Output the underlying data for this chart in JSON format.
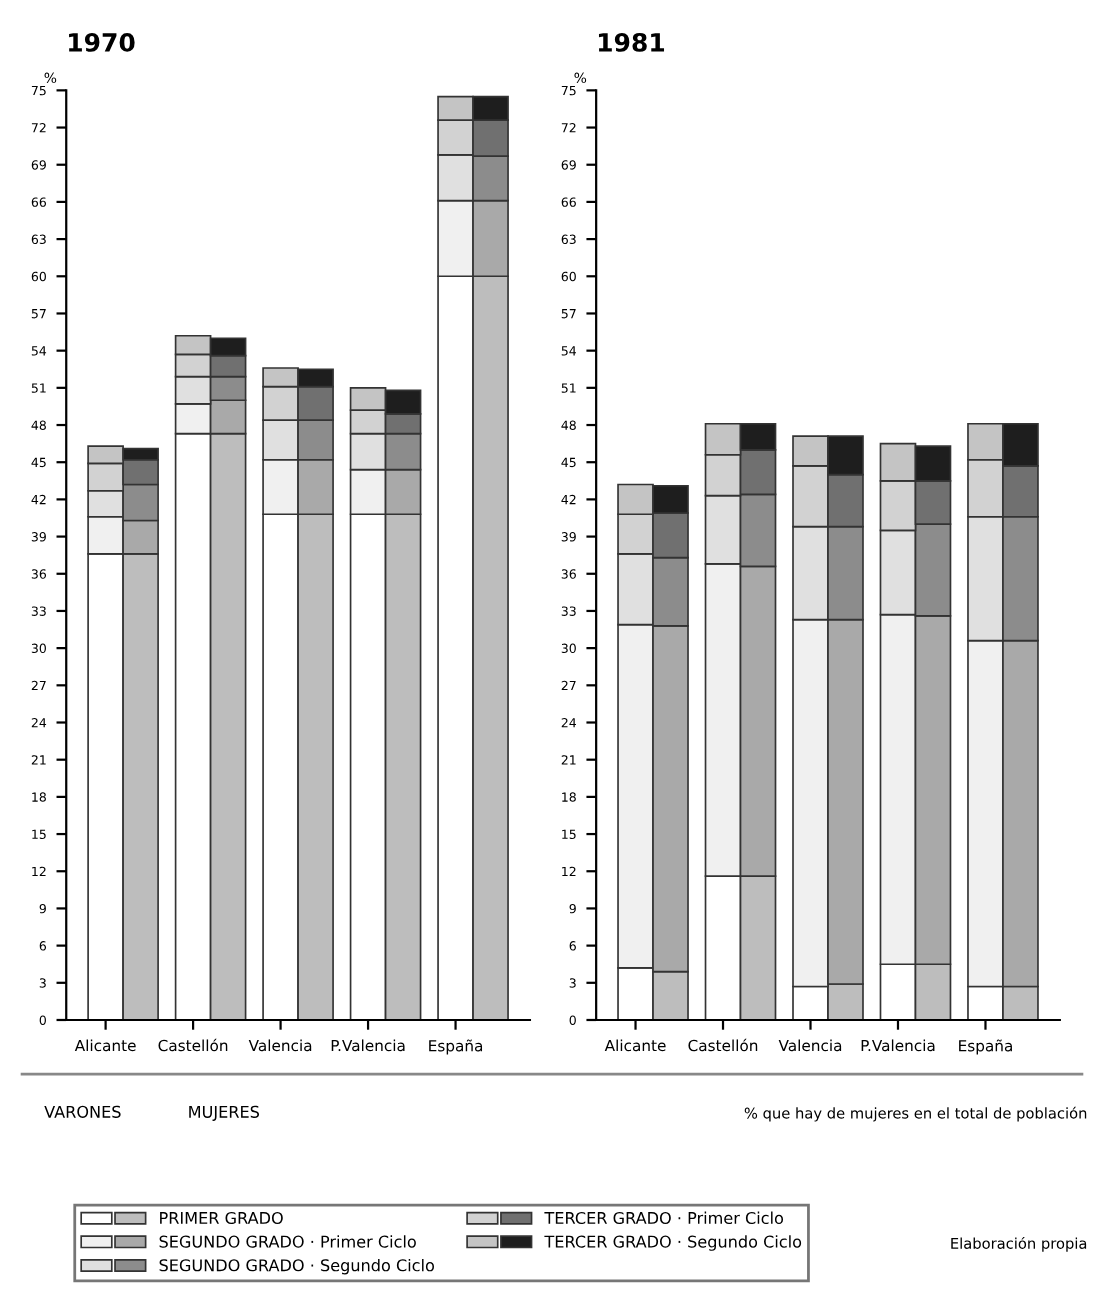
{
  "chart_data": [
    {
      "type": "bar",
      "stacked": true,
      "title": "1970",
      "ylabel": "%",
      "categories": [
        "Alicante",
        null,
        "Castellón",
        null,
        "Valencia",
        null,
        "P.Valencia",
        null,
        "España",
        null
      ],
      "ylim": [
        0,
        75
      ],
      "yticks": [
        0,
        3,
        6,
        9,
        12,
        15,
        18,
        21,
        24,
        27,
        30,
        33,
        36,
        39,
        42,
        45,
        48,
        51,
        54,
        57,
        60,
        63,
        66,
        69,
        72,
        75
      ],
      "legend": "bottom",
      "series": [
        {
          "name": "PRIMER GRADO",
          "colors": [
            "#ffffff",
            "#bdbdbd",
            "#ffffff",
            "#bdbdbd",
            "#ffffff",
            "#bdbdbd",
            "#ffffff",
            "#bdbdbd",
            "#ffffff",
            "#bdbdbd"
          ],
          "values": [
            37.6,
            37.6,
            47.3,
            47.3,
            40.8,
            40.8,
            40.8,
            40.8,
            60.0,
            60.0
          ]
        },
        {
          "name": "SEGUNDO GRADO · Primer Ciclo",
          "colors": [
            "#f0f0f0",
            "#a9a9a9",
            "#f0f0f0",
            "#a9a9a9",
            "#f0f0f0",
            "#a9a9a9",
            "#f0f0f0",
            "#a9a9a9",
            "#f0f0f0",
            "#a9a9a9"
          ],
          "values": [
            3.0,
            2.7,
            2.4,
            2.7,
            4.4,
            4.4,
            3.6,
            3.6,
            6.1,
            6.1
          ]
        },
        {
          "name": "SEGUNDO GRADO · Segundo Ciclo",
          "colors": [
            "#e0e0e0",
            "#8c8c8c",
            "#e0e0e0",
            "#8c8c8c",
            "#e0e0e0",
            "#8c8c8c",
            "#e0e0e0",
            "#8c8c8c",
            "#e0e0e0",
            "#8c8c8c"
          ],
          "values": [
            2.1,
            2.9,
            2.2,
            1.9,
            3.2,
            3.2,
            2.9,
            2.9,
            3.7,
            3.6
          ]
        },
        {
          "name": "TERCER GRADO · Primer Ciclo",
          "colors": [
            "#d2d2d2",
            "#707070",
            "#d2d2d2",
            "#707070",
            "#d2d2d2",
            "#707070",
            "#d2d2d2",
            "#707070",
            "#d2d2d2",
            "#707070"
          ],
          "values": [
            2.2,
            2.0,
            1.8,
            1.7,
            2.7,
            2.7,
            1.9,
            1.6,
            2.8,
            2.9
          ]
        },
        {
          "name": "TERCER GRADO · Segundo Ciclo",
          "colors": [
            "#c4c4c4",
            "#1e1e1e",
            "#c4c4c4",
            "#1e1e1e",
            "#c4c4c4",
            "#1e1e1e",
            "#c4c4c4",
            "#1e1e1e",
            "#c4c4c4",
            "#1e1e1e"
          ],
          "values": [
            1.4,
            0.9,
            1.5,
            1.4,
            1.5,
            1.4,
            1.8,
            1.9,
            1.9,
            1.9
          ]
        }
      ]
    },
    {
      "type": "bar",
      "stacked": true,
      "title": "1981",
      "ylabel": "%",
      "categories": [
        "Alicante",
        null,
        "Castellón",
        null,
        "Valencia",
        null,
        "P.Valencia",
        null,
        "España",
        null
      ],
      "ylim": [
        0,
        75
      ],
      "yticks": [
        0,
        3,
        6,
        9,
        12,
        15,
        18,
        21,
        24,
        27,
        30,
        33,
        36,
        39,
        42,
        45,
        48,
        51,
        54,
        57,
        60,
        63,
        66,
        69,
        72,
        75
      ],
      "annotations": [
        "VARONES",
        "MUJERES",
        "% que hay de mujeres en el total de población",
        "Elaboración propia"
      ],
      "series": [
        {
          "colors": [
            "#ffffff",
            "#bdbdbd",
            "#ffffff",
            "#bdbdbd",
            "#ffffff",
            "#bdbdbd",
            "#ffffff",
            "#bdbdbd",
            "#ffffff",
            "#bdbdbd"
          ],
          "values": [
            4.2,
            3.9,
            11.6,
            11.6,
            2.7,
            2.9,
            4.5,
            4.5,
            2.7,
            2.7
          ]
        },
        {
          "colors": [
            "#f0f0f0",
            "#a9a9a9",
            "#f0f0f0",
            "#a9a9a9",
            "#f0f0f0",
            "#a9a9a9",
            "#f0f0f0",
            "#a9a9a9",
            "#f0f0f0",
            "#a9a9a9"
          ],
          "values": [
            27.7,
            27.9,
            25.2,
            25.0,
            29.6,
            29.4,
            28.2,
            28.1,
            27.9,
            27.9
          ]
        },
        {
          "colors": [
            "#e0e0e0",
            "#8c8c8c",
            "#e0e0e0",
            "#8c8c8c",
            "#e0e0e0",
            "#8c8c8c",
            "#e0e0e0",
            "#8c8c8c",
            "#e0e0e0",
            "#8c8c8c"
          ],
          "values": [
            5.7,
            5.5,
            5.5,
            5.8,
            7.5,
            7.5,
            6.8,
            7.4,
            10.0,
            10.0
          ]
        },
        {
          "colors": [
            "#d2d2d2",
            "#707070",
            "#d2d2d2",
            "#707070",
            "#d2d2d2",
            "#707070",
            "#d2d2d2",
            "#707070",
            "#d2d2d2",
            "#707070"
          ],
          "values": [
            3.2,
            3.6,
            3.3,
            3.6,
            4.9,
            4.2,
            4.0,
            3.5,
            4.6,
            4.1
          ]
        },
        {
          "colors": [
            "#c4c4c4",
            "#1e1e1e",
            "#c4c4c4",
            "#1e1e1e",
            "#c4c4c4",
            "#1e1e1e",
            "#c4c4c4",
            "#1e1e1e",
            "#c4c4c4",
            "#1e1e1e"
          ],
          "values": [
            2.4,
            2.2,
            2.5,
            2.1,
            2.4,
            3.1,
            3.0,
            2.8,
            2.9,
            3.4
          ]
        }
      ]
    }
  ]
}
